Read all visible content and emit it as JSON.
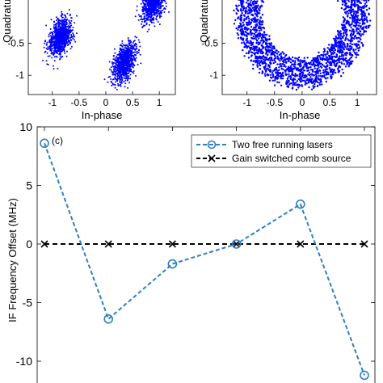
{
  "chart_data": [
    {
      "type": "scatter",
      "panel": "a",
      "xlabel": "In-phase",
      "ylabel": "Quadrature",
      "xlim": [
        -1.45,
        1.3
      ],
      "ylim": [
        -1.3,
        0.2
      ],
      "xticks": [
        "-1",
        "-0.5",
        "0",
        "0.5",
        "1"
      ],
      "yticks": [
        "-0.5",
        "-1"
      ],
      "clusters": [
        {
          "x": -0.85,
          "y": -0.4
        },
        {
          "x": 0.9,
          "y": 0.15
        },
        {
          "x": 0.35,
          "y": -0.8
        }
      ],
      "color": "#0000ff"
    },
    {
      "type": "scatter",
      "panel": "b",
      "xlabel": "In-phase",
      "ylabel": "Quadrature",
      "xlim": [
        -1.45,
        1.35
      ],
      "ylim": [
        -1.3,
        0.2
      ],
      "xticks": [
        "-1",
        "-0.5",
        "0",
        "0.5",
        "1"
      ],
      "yticks": [
        "-0.5",
        "-1"
      ],
      "ring": {
        "center": [
          0,
          0
        ],
        "inner_radius": 0.75,
        "outer_radius": 1.2
      },
      "color": "#0000ff"
    },
    {
      "type": "line",
      "panel": "c",
      "panel_label": "(c)",
      "xlabel": "",
      "ylabel": "IF Frequency Offset (MHz)",
      "ylim": [
        -11.5,
        10
      ],
      "yticks": [
        10,
        5,
        0,
        -5,
        -10
      ],
      "x": [
        1,
        2,
        3,
        4,
        5,
        6
      ],
      "xlim": [
        1,
        6
      ],
      "legend_position": "top-right",
      "series": [
        {
          "name": "Two free running lasers",
          "values": [
            8.6,
            -6.4,
            -1.7,
            0.0,
            3.4,
            -11.2
          ],
          "color": "#2e7fc1",
          "marker": "o",
          "linestyle": "dashed"
        },
        {
          "name": "Gain switched comb source",
          "values": [
            0,
            0,
            0,
            0,
            0,
            0
          ],
          "color": "#000000",
          "marker": "x",
          "linestyle": "dashed"
        }
      ]
    }
  ]
}
